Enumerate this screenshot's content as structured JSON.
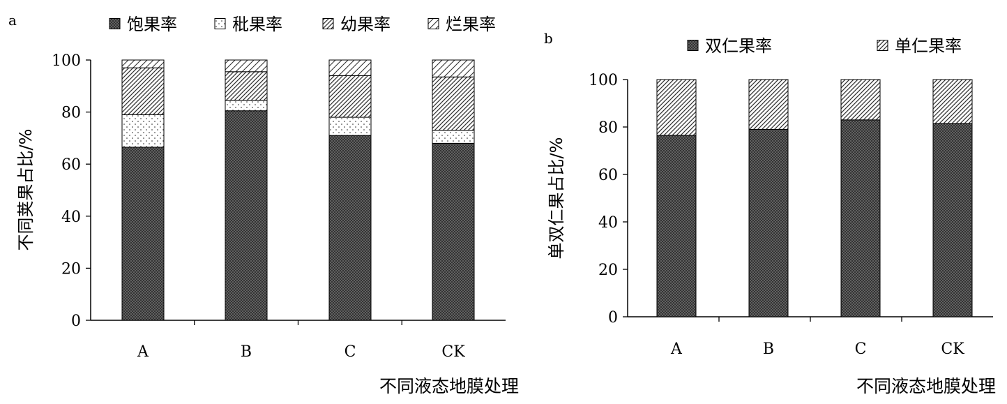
{
  "chart_data": [
    {
      "panel_label": "a",
      "type": "bar",
      "stacked": true,
      "categories": [
        "A",
        "B",
        "C",
        "CK"
      ],
      "series": [
        {
          "name": "饱果率",
          "pattern": "dense-cross",
          "values": [
            66.5,
            80.5,
            71,
            68
          ]
        },
        {
          "name": "秕果率",
          "pattern": "dots",
          "values": [
            12.5,
            4,
            7,
            5
          ]
        },
        {
          "name": "幼果率",
          "pattern": "hatch",
          "values": [
            18,
            11,
            16,
            20.5
          ]
        },
        {
          "name": "烂果率",
          "pattern": "sparse-hatch",
          "values": [
            3,
            4.5,
            6,
            6.5
          ]
        }
      ],
      "xlabel": "不同液态地膜处理",
      "ylabel": "不同荚果占比/%",
      "ylim": [
        0,
        100
      ],
      "yticks": [
        0,
        20,
        40,
        60,
        80,
        100
      ],
      "grid": false,
      "legend_position": "top"
    },
    {
      "panel_label": "b",
      "type": "bar",
      "stacked": true,
      "categories": [
        "A",
        "B",
        "C",
        "CK"
      ],
      "series": [
        {
          "name": "双仁果率",
          "pattern": "dense-cross",
          "values": [
            76.5,
            79,
            83,
            81.5
          ]
        },
        {
          "name": "单仁果率",
          "pattern": "hatch",
          "values": [
            23.5,
            21,
            17,
            18.5
          ]
        }
      ],
      "xlabel": "不同液态地膜处理",
      "ylabel": "单双仁果占比/%",
      "ylim": [
        0,
        100
      ],
      "yticks": [
        0,
        20,
        40,
        60,
        80,
        100
      ],
      "grid": false,
      "legend_position": "top"
    }
  ]
}
